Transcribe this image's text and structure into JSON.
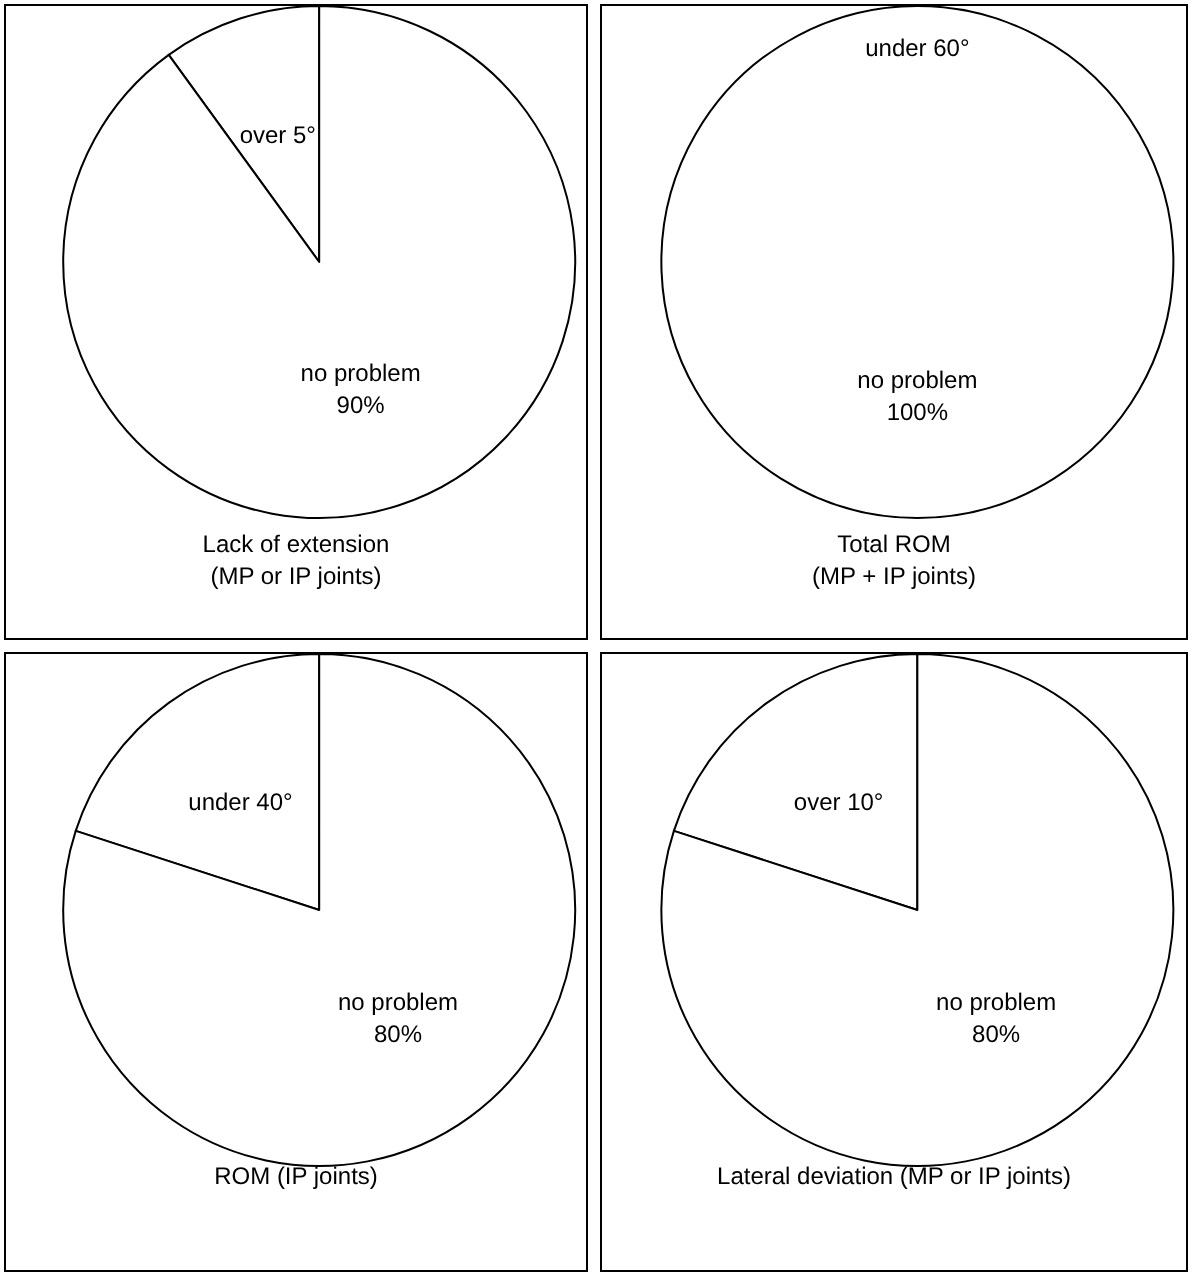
{
  "chart_data": [
    {
      "type": "pie",
      "title": "Lack of extension\n(MP or IP joints)",
      "categories": [
        "over 5°",
        "no problem"
      ],
      "values": [
        10,
        90
      ],
      "colors": [
        "#ffffff",
        "#ffffff"
      ],
      "value_labels": [
        null,
        "90%"
      ]
    },
    {
      "type": "pie",
      "title": "Total ROM\n(MP + IP joints)",
      "categories": [
        "under 60°",
        "no problem"
      ],
      "values": [
        0,
        100
      ],
      "colors": [
        "#ffffff",
        "#ffffff"
      ],
      "value_labels": [
        null,
        "100%"
      ]
    },
    {
      "type": "pie",
      "title": "ROM (IP joints)",
      "categories": [
        "under 40°",
        "no problem"
      ],
      "values": [
        20,
        80
      ],
      "colors": [
        "#ffffff",
        "#ffffff"
      ],
      "value_labels": [
        null,
        "80%"
      ]
    },
    {
      "type": "pie",
      "title": "Lateral deviation (MP or IP joints)",
      "categories": [
        "over 10°",
        "no problem"
      ],
      "values": [
        20,
        80
      ],
      "colors": [
        "#ffffff",
        "#ffffff"
      ],
      "value_labels": [
        null,
        "80%"
      ]
    }
  ]
}
